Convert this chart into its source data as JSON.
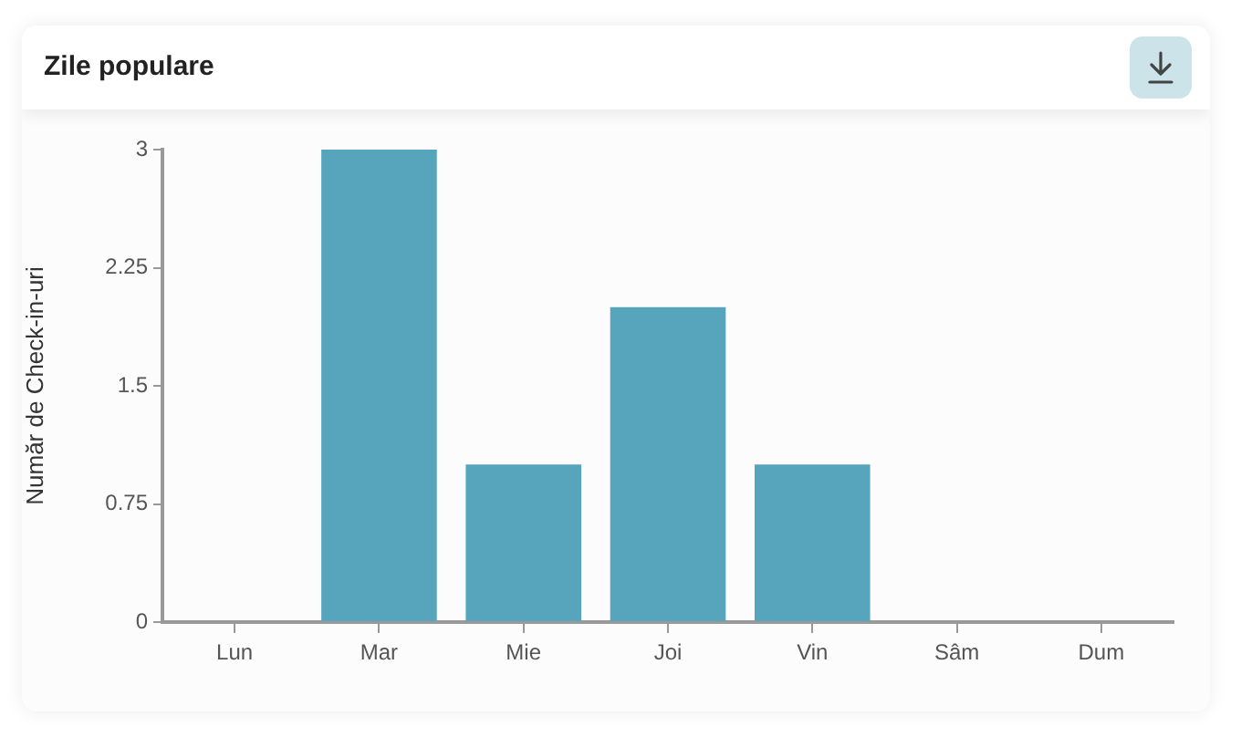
{
  "chart_data": {
    "type": "bar",
    "title": "Zile populare",
    "ylabel": "Număr de Check-in-uri",
    "categories": [
      "Lun",
      "Mar",
      "Mie",
      "Joi",
      "Vin",
      "Sâm",
      "Dum"
    ],
    "values": [
      0,
      3,
      1,
      2,
      1,
      0,
      0
    ],
    "color": "#57a5bd",
    "ylim": [
      0,
      3
    ],
    "yticks": [
      0,
      0.75,
      1.5,
      2.25,
      3
    ],
    "grid": false,
    "legend": false
  }
}
